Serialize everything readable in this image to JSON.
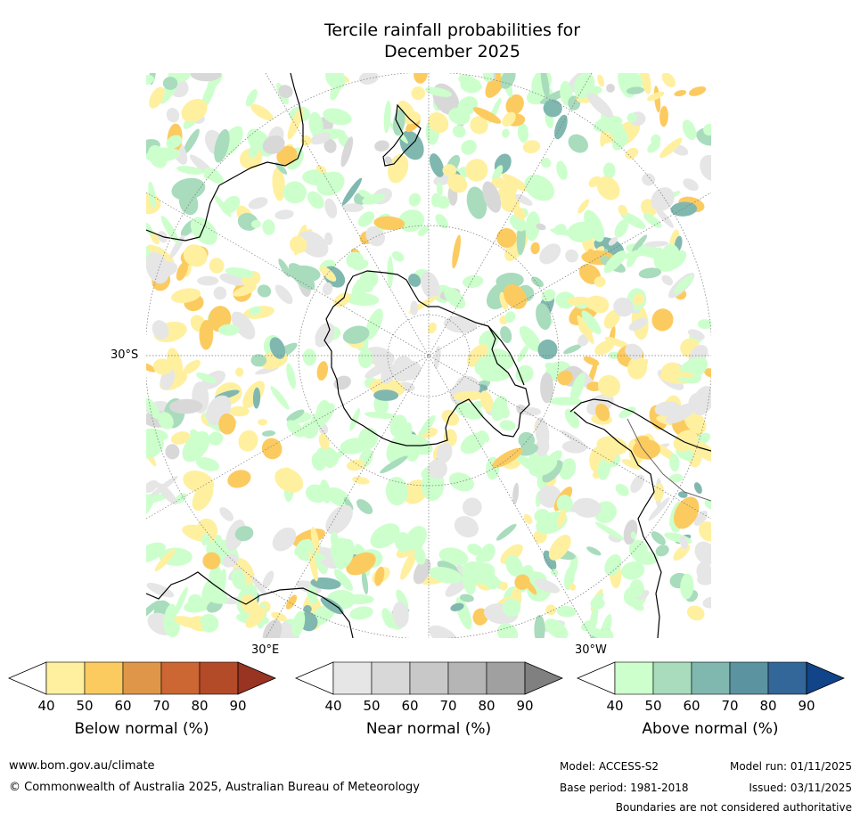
{
  "title_line1": "Tercile rainfall probabilities for",
  "title_line2": "December 2025",
  "map": {
    "projection": "south-polar-stereographic",
    "lat_label": "30°S",
    "lon_label_east": "30°E",
    "lon_label_west": "30°W",
    "colors": {
      "land_background": "#ffffff",
      "coast": "#000000",
      "grid": "#777777"
    }
  },
  "colorbars": [
    {
      "id": "below",
      "label": "Below normal (%)",
      "ticks": [
        "40",
        "50",
        "60",
        "70",
        "80",
        "90"
      ],
      "colors": [
        "#fff0a0",
        "#fccb60",
        "#e09648",
        "#cc6633",
        "#b34a28",
        "#993322"
      ]
    },
    {
      "id": "near",
      "label": "Near normal (%)",
      "ticks": [
        "40",
        "50",
        "60",
        "70",
        "80",
        "90"
      ],
      "colors": [
        "#e6e6e6",
        "#d8d8d8",
        "#c8c8c8",
        "#b5b5b5",
        "#a0a0a0",
        "#808080"
      ]
    },
    {
      "id": "above",
      "label": "Above normal (%)",
      "ticks": [
        "40",
        "50",
        "60",
        "70",
        "80",
        "90"
      ],
      "colors": [
        "#ccffcc",
        "#a8dcbc",
        "#80b8b0",
        "#5b94a0",
        "#336699",
        "#114488"
      ]
    }
  ],
  "footer": {
    "website": "www.bom.gov.au/climate",
    "copyright": "© Commonwealth of Australia 2025, Australian Bureau of Meteorology",
    "model": "Model: ACCESS-S2",
    "model_run": "Model run: 01/11/2025",
    "base_period": "Base period: 1981-2018",
    "issued": "Issued: 03/11/2025",
    "disclaimer": "Boundaries are not considered authoritative"
  }
}
